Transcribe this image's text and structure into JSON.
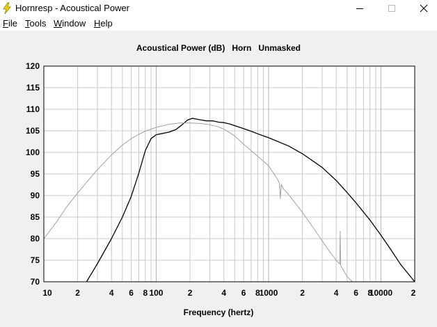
{
  "window": {
    "title": "Hornresp - Acoustical Power",
    "menu": [
      {
        "label": "File",
        "accel": "F",
        "rest": "ile"
      },
      {
        "label": "Tools",
        "accel": "T",
        "rest": "ools"
      },
      {
        "label": "Window",
        "accel": "W",
        "rest": "indow"
      },
      {
        "label": "Help",
        "accel": "H",
        "rest": "elp"
      }
    ]
  },
  "chart_data": {
    "type": "line",
    "title": "Acoustical Power (dB)   Horn   Unmasked",
    "xlabel": "Frequency (hertz)",
    "ylabel": "",
    "xscale": "log",
    "xlim": [
      10,
      20000
    ],
    "ylim": [
      70,
      120
    ],
    "y_ticks": [
      "120",
      "115",
      "110",
      "105",
      "100",
      "95",
      "90",
      "85",
      "80",
      "75",
      "70"
    ],
    "x_ticks": [
      {
        "f": 10,
        "label": "10"
      },
      {
        "f": 20,
        "label": "2"
      },
      {
        "f": 40,
        "label": "4"
      },
      {
        "f": 60,
        "label": "6"
      },
      {
        "f": 80,
        "label": "8"
      },
      {
        "f": 100,
        "label": "100"
      },
      {
        "f": 200,
        "label": "2"
      },
      {
        "f": 400,
        "label": "4"
      },
      {
        "f": 600,
        "label": "6"
      },
      {
        "f": 800,
        "label": "8"
      },
      {
        "f": 1000,
        "label": "1000"
      },
      {
        "f": 2000,
        "label": "2"
      },
      {
        "f": 4000,
        "label": "4"
      },
      {
        "f": 6000,
        "label": "6"
      },
      {
        "f": 8000,
        "label": "8"
      },
      {
        "f": 10000,
        "label": "10000"
      },
      {
        "f": 20000,
        "label": "2"
      }
    ],
    "grid": true,
    "colors": {
      "primary": "#000000",
      "secondary": "#a0a0a0",
      "grid": "#c8c8c8",
      "background": "#ffffff"
    },
    "series": [
      {
        "color": "#000000",
        "points": [
          [
            24,
            70
          ],
          [
            30,
            74.2
          ],
          [
            40,
            80
          ],
          [
            50,
            85
          ],
          [
            60,
            89.8
          ],
          [
            70,
            95.2
          ],
          [
            80,
            100.4
          ],
          [
            90,
            103.2
          ],
          [
            100,
            104.1
          ],
          [
            110,
            104.3
          ],
          [
            130,
            104.7
          ],
          [
            150,
            105.3
          ],
          [
            170,
            106.4
          ],
          [
            190,
            107.5
          ],
          [
            210,
            107.9
          ],
          [
            240,
            107.6
          ],
          [
            280,
            107.3
          ],
          [
            320,
            107.3
          ],
          [
            360,
            107.0
          ],
          [
            400,
            106.9
          ],
          [
            450,
            106.6
          ],
          [
            500,
            106.2
          ],
          [
            600,
            105.5
          ],
          [
            700,
            104.9
          ],
          [
            800,
            104.3
          ],
          [
            1000,
            103.4
          ],
          [
            1500,
            101.5
          ],
          [
            2000,
            99.7
          ],
          [
            3000,
            96.5
          ],
          [
            4000,
            93.5
          ],
          [
            5000,
            90.7
          ],
          [
            6000,
            88.3
          ],
          [
            8000,
            84.3
          ],
          [
            10000,
            80.8
          ],
          [
            12000,
            77.8
          ],
          [
            15000,
            74.0
          ],
          [
            20000,
            70
          ]
        ]
      },
      {
        "color": "#a0a0a0",
        "points": [
          [
            10,
            80
          ],
          [
            13,
            83.9
          ],
          [
            16,
            87.4
          ],
          [
            20,
            90.6
          ],
          [
            25,
            93.6
          ],
          [
            30,
            96.0
          ],
          [
            35,
            97.8
          ],
          [
            40,
            99.4
          ],
          [
            50,
            101.7
          ],
          [
            60,
            103.2
          ],
          [
            70,
            104.2
          ],
          [
            80,
            104.9
          ],
          [
            100,
            105.8
          ],
          [
            130,
            106.5
          ],
          [
            160,
            106.8
          ],
          [
            200,
            106.8
          ],
          [
            250,
            106.7
          ],
          [
            300,
            106.4
          ],
          [
            350,
            106.0
          ],
          [
            400,
            105.4
          ],
          [
            500,
            103.8
          ],
          [
            600,
            101.9
          ],
          [
            700,
            100.4
          ],
          [
            800,
            99.1
          ],
          [
            1000,
            96.9
          ],
          [
            1200,
            93.8
          ],
          [
            1250,
            92.8
          ],
          [
            1270,
            89.3
          ],
          [
            1300,
            92.6
          ],
          [
            1350,
            91.6
          ],
          [
            1500,
            90.3
          ],
          [
            2000,
            86.1
          ],
          [
            2500,
            82.5
          ],
          [
            3000,
            79.5
          ],
          [
            3500,
            77.0
          ],
          [
            4000,
            75.0
          ],
          [
            4300,
            74.1
          ],
          [
            4340,
            81.7
          ],
          [
            4380,
            73.8
          ],
          [
            5000,
            71.2
          ],
          [
            5600,
            70
          ]
        ]
      }
    ]
  }
}
